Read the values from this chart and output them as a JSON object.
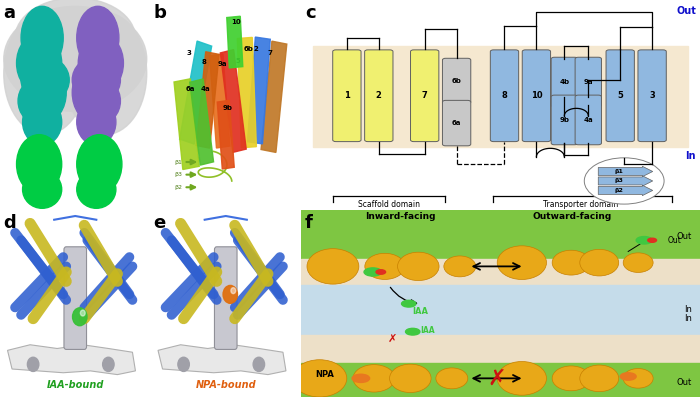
{
  "panel_labels": [
    "a",
    "b",
    "c",
    "d",
    "e",
    "f"
  ],
  "panel_label_fontsize": 13,
  "panel_label_fontweight": "bold",
  "bg_color": "#ffffff",
  "fig_width": 7.0,
  "fig_height": 3.97,
  "panel_c": {
    "membrane_color": "#f5e8d0",
    "scaffold_color": "#f0f070",
    "scaffold_dark": "#e0e050",
    "gray_helix_color": "#c8c8c8",
    "blue_helix_color": "#90b8e0",
    "blue_dark": "#6898c8",
    "out_label_color": "#1010cc",
    "in_label_color": "#1010cc"
  },
  "panel_f": {
    "green_bg": "#7ec642",
    "membrane_color": "#ede0c8",
    "inner_color": "#c5dcea",
    "protein_fill": "#e8a818",
    "protein_edge": "#c88000",
    "iaa_color": "#40c840",
    "npa_color": "#e87820",
    "text_color": "#000000",
    "arrow_color": "#000000",
    "cross_color": "#cc1010",
    "out_label": "Out",
    "in_label": "In",
    "title_inward": "Inward-facing",
    "title_outward": "Outward-facing",
    "label_IAA": "IAA",
    "label_NPA": "NPA"
  }
}
